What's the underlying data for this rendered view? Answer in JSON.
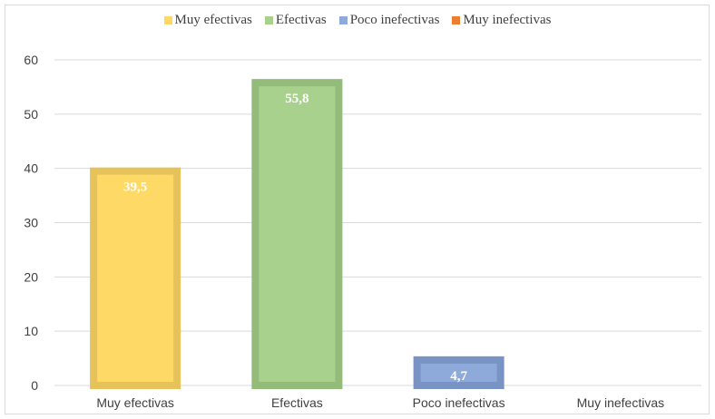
{
  "chart_data": {
    "type": "bar",
    "categories": [
      "Muy efectivas",
      "Efectivas",
      "Poco inefectivas",
      "Muy inefectivas"
    ],
    "values": [
      39.5,
      55.8,
      4.7,
      0
    ],
    "data_labels": [
      "39,5",
      "55,8",
      "4,7",
      ""
    ],
    "colors": [
      "#ffd966",
      "#a9d18e",
      "#8eaadb",
      "#ed7d31"
    ],
    "border_colors": [
      "#e6c25a",
      "#93bb7a",
      "#7893c4",
      "#d06a28"
    ],
    "legend": [
      "Muy efectivas",
      "Efectivas",
      "Poco inefectivas",
      "Muy inefectivas"
    ],
    "legend_position": "top",
    "ylim": [
      0,
      60
    ],
    "yticks": [
      "0",
      "10",
      "20",
      "30",
      "40",
      "50",
      "60"
    ],
    "grid": true,
    "title": "",
    "xlabel": "",
    "ylabel": ""
  }
}
